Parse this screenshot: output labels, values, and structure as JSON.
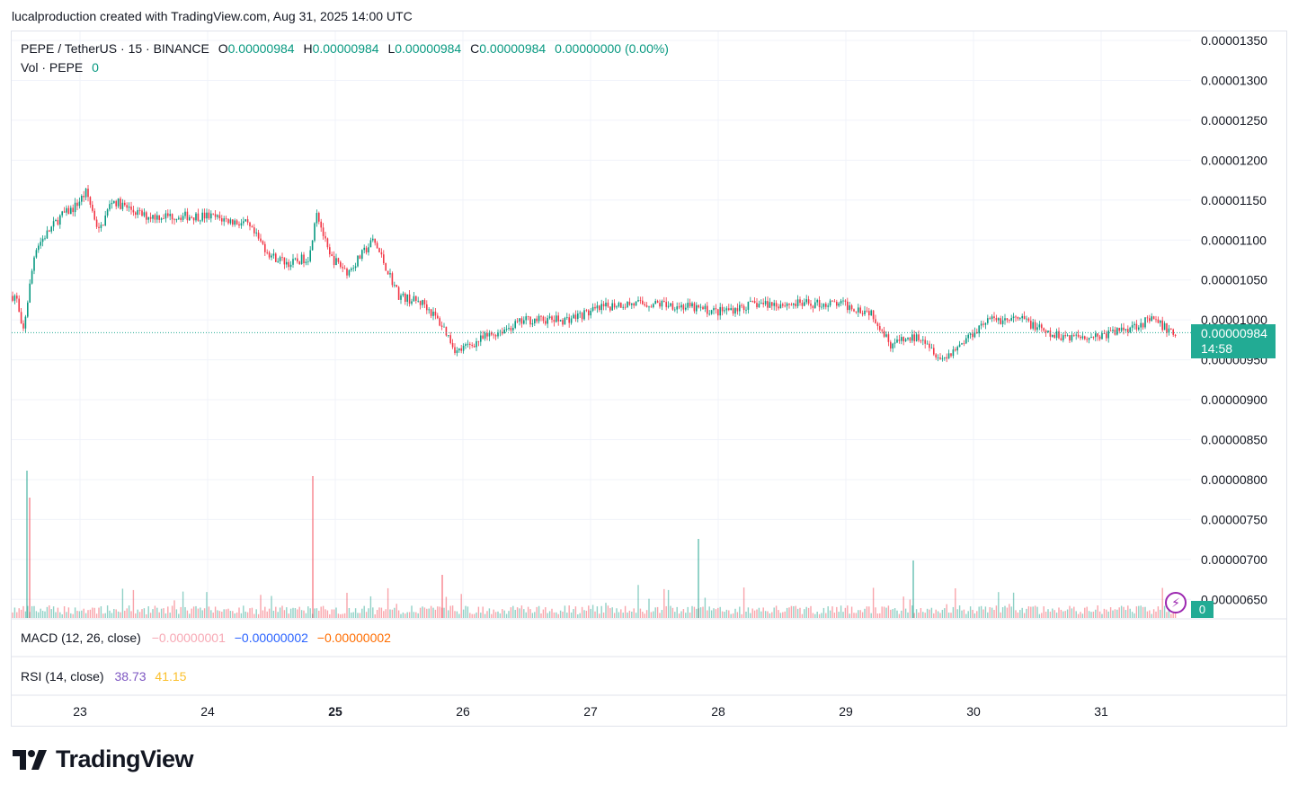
{
  "credit": "lucalproduction created with TradingView.com, Aug 31, 2025 14:00 UTC",
  "legend": {
    "symbol": "PEPE / TetherUS · 15 · BINANCE",
    "o_label": "O",
    "o_value": "0.00000984",
    "h_label": "H",
    "h_value": "0.00000984",
    "l_label": "L",
    "l_value": "0.00000984",
    "c_label": "C",
    "c_value": "0.00000984",
    "change": "0.00000000 (0.00%)",
    "vol_label": "Vol · PEPE",
    "vol_value": "0"
  },
  "macd": {
    "label": "MACD (12, 26, close)",
    "v1": "−0.00000001",
    "v2": "−0.00000002",
    "v3": "−0.00000002"
  },
  "rsi": {
    "label": "RSI (14, close)",
    "v1": "38.73",
    "v2": "41.15"
  },
  "price_tag": {
    "price": "0.00000984",
    "countdown": "14:58"
  },
  "vol_tag": "0",
  "brand": "TradingView",
  "colors": {
    "up": "#089981",
    "down": "#f23645",
    "macd1": "#f7a8b4",
    "macd2": "#2962ff",
    "macd3": "#ff6d00",
    "rsi1": "#7e57c2",
    "rsi2": "#fbc02d",
    "tag": "#22ab94"
  },
  "chart_data": {
    "type": "candlestick",
    "y_ticks": [
      "0.00001350",
      "0.00001300",
      "0.00001250",
      "0.00001200",
      "0.00001150",
      "0.00001100",
      "0.00001050",
      "0.00001000",
      "0.00000950",
      "0.00000900",
      "0.00000850",
      "0.00000800",
      "0.00000750",
      "0.00000700",
      "0.00000650"
    ],
    "x_ticks": [
      "23",
      "24",
      "25",
      "26",
      "27",
      "28",
      "29",
      "30",
      "31"
    ],
    "ylim": [
      6.2e-06,
      1.36e-05
    ],
    "last_price": 9.84e-06,
    "price_path_days": [
      22.5,
      22.55,
      22.65,
      22.85,
      22.95,
      23.05,
      23.15,
      23.25,
      23.5,
      23.8,
      24.0,
      24.3,
      24.5,
      24.65,
      24.8,
      24.85,
      24.95,
      25.1,
      25.3,
      25.5,
      25.7,
      25.85,
      25.95,
      26.2,
      26.5,
      26.8,
      27.2,
      27.6,
      28.0,
      28.3,
      28.7,
      28.95,
      29.2,
      29.35,
      29.6,
      29.75,
      29.9,
      30.1,
      30.4,
      30.6,
      30.8,
      31.0,
      31.4,
      31.6
    ],
    "price_path_values": [
      1.03e-05,
      9.8e-06,
      1.09e-05,
      1.13e-05,
      1.14e-05,
      1.16e-05,
      1.11e-05,
      1.15e-05,
      1.13e-05,
      1.13e-05,
      1.13e-05,
      1.12e-05,
      1.08e-05,
      1.07e-05,
      1.08e-05,
      1.14e-05,
      1.08e-05,
      1.06e-05,
      1.1e-05,
      1.03e-05,
      1.02e-05,
      9.9e-06,
      9.6e-06,
      9.8e-06,
      1e-05,
      1e-05,
      1.02e-05,
      1.02e-05,
      1.01e-05,
      1.02e-05,
      1.02e-05,
      1.02e-05,
      1.01e-05,
      9.7e-06,
      9.8e-06,
      9.5e-06,
      9.7e-06,
      1e-05,
      1e-05,
      9.8e-06,
      9.8e-06,
      9.8e-06,
      1e-05,
      9.8e-06
    ]
  }
}
